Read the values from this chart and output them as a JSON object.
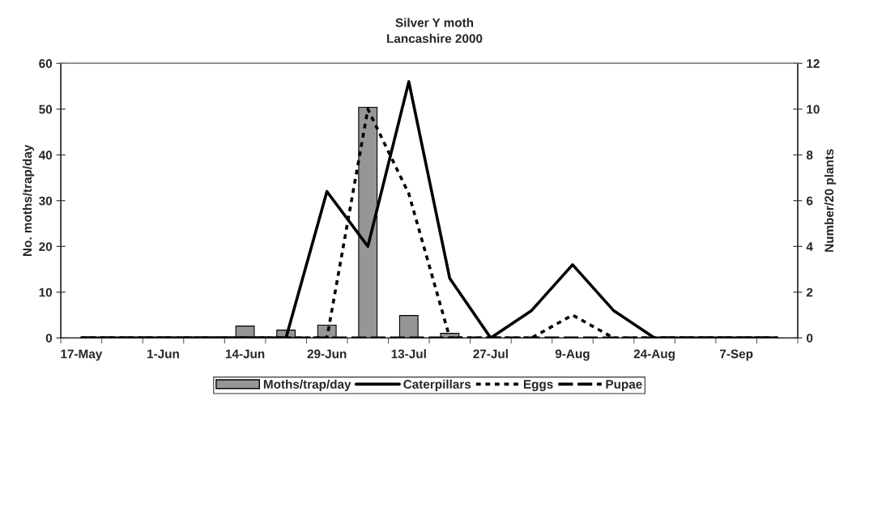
{
  "chart_data": {
    "type": "bar",
    "title": "Silver Y moth",
    "subtitle": "Lancashire 2000",
    "ylabel": "No. moths/trap/day",
    "y2label": "Number/20 plants",
    "categories": [
      "17-May",
      null,
      "1-Jun",
      null,
      "14-Jun",
      null,
      "29-Jun",
      null,
      "13-Jul",
      null,
      "27-Jul",
      null,
      "9-Aug",
      null,
      "24-Aug",
      null,
      "7-Sep",
      null
    ],
    "series": [
      {
        "name": "Moths/trap/day",
        "color": "#969696",
        "values": [
          0,
          0,
          0,
          0,
          2.6,
          1.7,
          2.8,
          50.4,
          4.9,
          1.0,
          0,
          0,
          0,
          0,
          0,
          0,
          0,
          0
        ]
      },
      {
        "name": "Caterpillars",
        "type": "line",
        "axis": "y2",
        "color": "#000000",
        "line_style": "solid",
        "values": [
          0,
          0,
          0,
          0,
          0,
          0,
          6.4,
          4,
          11.2,
          2.6,
          0,
          1.2,
          3.2,
          1.2,
          0,
          0,
          0,
          0
        ]
      },
      {
        "name": "Eggs",
        "type": "line",
        "axis": "y2",
        "color": "#000000",
        "line_style": "dotted",
        "values": [
          0,
          0,
          0,
          0,
          0,
          0,
          0,
          10,
          6.3,
          0,
          0,
          0,
          1,
          0,
          0,
          0,
          0,
          0
        ]
      },
      {
        "name": "Pupae",
        "type": "line",
        "axis": "y2",
        "color": "#000000",
        "line_style": "dashed",
        "values": [
          0,
          0,
          0,
          0,
          0,
          0,
          0,
          0,
          0,
          0,
          0,
          0,
          0,
          0,
          0,
          0,
          0,
          0
        ]
      }
    ],
    "ylim": [
      0,
      60
    ],
    "yticks": [
      0,
      10,
      20,
      30,
      40,
      50,
      60
    ],
    "y2lim": [
      0,
      12
    ],
    "y2ticks": [
      0,
      2,
      4,
      6,
      8,
      10,
      12
    ],
    "grid": false,
    "legend": "bottom"
  }
}
